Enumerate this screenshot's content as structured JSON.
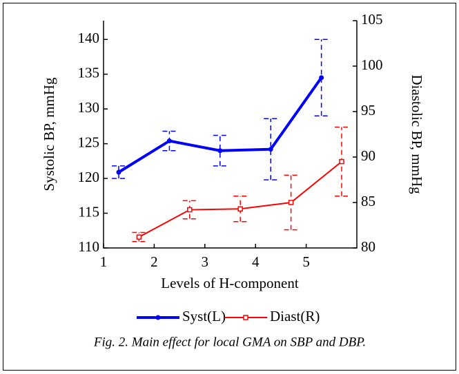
{
  "chart_data": {
    "type": "line",
    "caption": "Fig. 2. Main effect for local GMA on SBP and DBP.",
    "xlabel": "Levels of H-component",
    "ylabel": "Systolic BP, mmHg",
    "y2label": "Diastolic BP, mmHg",
    "xlim": [
      1,
      6
    ],
    "xticks": [
      1,
      2,
      3,
      4,
      5
    ],
    "ylim": [
      110,
      142.7
    ],
    "yticks": [
      110,
      115,
      120,
      125,
      130,
      135,
      140
    ],
    "y2lim": [
      80,
      105
    ],
    "y2ticks": [
      80,
      85,
      90,
      95,
      100,
      105
    ],
    "grid": false,
    "series": [
      {
        "name": "Syst(L)",
        "color": "#0000ff",
        "x": [
          1.3,
          2.3,
          3.3,
          4.3,
          5.3
        ],
        "values": [
          120.9,
          125.4,
          124.0,
          124.2,
          134.5
        ],
        "errors": [
          0.9,
          1.4,
          2.2,
          4.4,
          5.5
        ]
      },
      {
        "name": "Diast(R)",
        "color": "#ff0000",
        "axis": "y2",
        "x": [
          1.7,
          2.7,
          3.7,
          4.7,
          5.7
        ],
        "values": [
          81.2,
          84.2,
          84.3,
          85.0,
          89.5
        ],
        "errors": [
          0.5,
          1.0,
          1.4,
          3.0,
          3.8
        ]
      }
    ]
  }
}
